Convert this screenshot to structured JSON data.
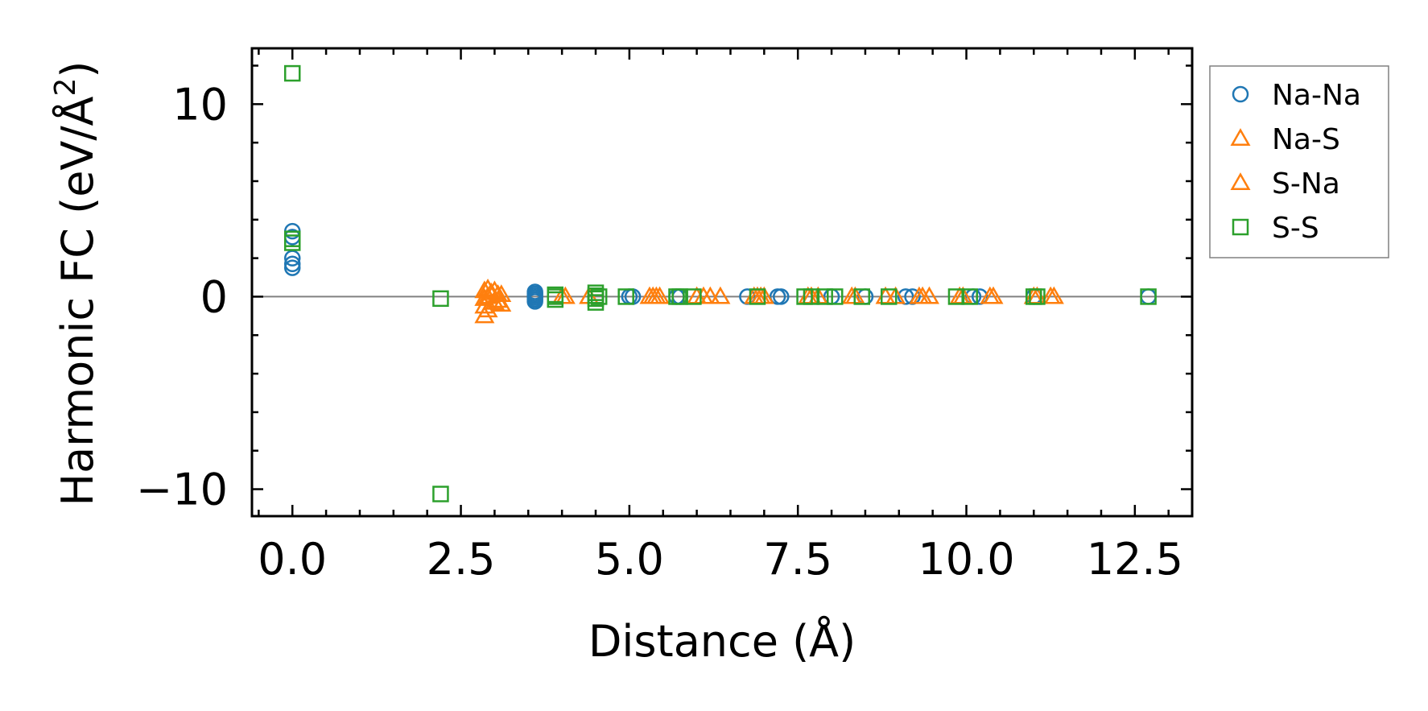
{
  "chart_data": {
    "type": "scatter",
    "title": "",
    "xlabel": "Distance (Å)",
    "ylabel_main": "Harmonic FC (eV/Å",
    "ylabel_sup": "2",
    "ylabel_close": ")",
    "xlim": [
      -0.6,
      13.35
    ],
    "ylim": [
      -11.4,
      12.9
    ],
    "xticks": [
      0.0,
      2.5,
      5.0,
      7.5,
      10.0,
      12.5
    ],
    "xtick_labels": [
      "0.0",
      "2.5",
      "5.0",
      "7.5",
      "10.0",
      "12.5"
    ],
    "yticks": [
      -10,
      0,
      10
    ],
    "ytick_labels": [
      "−10",
      "0",
      "10"
    ],
    "reference_line_y": 0,
    "legend_position": "outside right, top",
    "series": [
      {
        "name": "Na-Na",
        "marker": "circle",
        "color": "#1f77b4",
        "points": [
          [
            0,
            3.4
          ],
          [
            0,
            3.1
          ],
          [
            0,
            2.0
          ],
          [
            0,
            1.7
          ],
          [
            0,
            1.5
          ],
          [
            3.6,
            0.25
          ],
          [
            3.6,
            0.15
          ],
          [
            3.6,
            0.05
          ],
          [
            3.6,
            -0.05
          ],
          [
            3.6,
            -0.15
          ],
          [
            3.6,
            -0.25
          ],
          [
            5.0,
            0
          ],
          [
            5.05,
            0
          ],
          [
            5.7,
            0
          ],
          [
            5.75,
            0
          ],
          [
            6.75,
            0
          ],
          [
            7.2,
            0
          ],
          [
            7.25,
            0
          ],
          [
            8.0,
            0
          ],
          [
            8.5,
            0
          ],
          [
            9.1,
            0
          ],
          [
            9.2,
            0
          ],
          [
            10.1,
            0
          ],
          [
            10.2,
            0
          ],
          [
            11.0,
            0
          ],
          [
            12.7,
            0
          ]
        ]
      },
      {
        "name": "Na-S",
        "marker": "triangle",
        "color": "#ff7f0e",
        "points": [
          [
            2.85,
            0.3
          ],
          [
            2.85,
            -0.1
          ],
          [
            2.85,
            -0.5
          ],
          [
            2.85,
            -1.0
          ],
          [
            2.95,
            0.2
          ],
          [
            3.0,
            -0.3
          ],
          [
            3.05,
            0.1
          ],
          [
            3.1,
            -0.4
          ],
          [
            4.0,
            0
          ],
          [
            4.05,
            0
          ],
          [
            4.4,
            0
          ],
          [
            5.3,
            0
          ],
          [
            5.4,
            0
          ],
          [
            6.0,
            0
          ],
          [
            6.2,
            0
          ],
          [
            6.35,
            0
          ],
          [
            6.9,
            0
          ],
          [
            6.95,
            0
          ],
          [
            7.7,
            0
          ],
          [
            7.8,
            0
          ],
          [
            8.3,
            0
          ],
          [
            8.8,
            0
          ],
          [
            9.3,
            0
          ],
          [
            9.45,
            0
          ],
          [
            9.9,
            0
          ],
          [
            10.4,
            0
          ],
          [
            11.0,
            0
          ],
          [
            11.3,
            0
          ]
        ]
      },
      {
        "name": "S-Na",
        "marker": "triangle",
        "color": "#ff7f0e",
        "points": [
          [
            2.9,
            0.4
          ],
          [
            2.9,
            0.0
          ],
          [
            2.9,
            -0.7
          ],
          [
            3.0,
            0.3
          ],
          [
            3.05,
            -0.2
          ],
          [
            3.1,
            0.1
          ],
          [
            5.35,
            0
          ],
          [
            5.45,
            0
          ],
          [
            6.1,
            0
          ],
          [
            6.85,
            0
          ],
          [
            7.0,
            0
          ],
          [
            7.65,
            0
          ],
          [
            8.35,
            0
          ],
          [
            8.95,
            0
          ],
          [
            9.35,
            0
          ],
          [
            9.95,
            0
          ],
          [
            10.35,
            0
          ],
          [
            11.05,
            0
          ],
          [
            11.25,
            0
          ]
        ]
      },
      {
        "name": "S-S",
        "marker": "square",
        "color": "#2ca02c",
        "points": [
          [
            0,
            11.6
          ],
          [
            0,
            3.0
          ],
          [
            0,
            2.8
          ],
          [
            2.2,
            -0.1
          ],
          [
            2.2,
            -10.25
          ],
          [
            3.9,
            0.1
          ],
          [
            3.9,
            0
          ],
          [
            3.9,
            -0.15
          ],
          [
            4.5,
            0.2
          ],
          [
            4.5,
            0.05
          ],
          [
            4.5,
            -0.1
          ],
          [
            4.5,
            -0.3
          ],
          [
            4.55,
            0
          ],
          [
            4.95,
            0
          ],
          [
            5.7,
            0
          ],
          [
            5.75,
            0
          ],
          [
            5.95,
            0
          ],
          [
            6.9,
            0
          ],
          [
            7.6,
            0
          ],
          [
            7.7,
            0
          ],
          [
            7.9,
            0
          ],
          [
            8.05,
            0
          ],
          [
            8.45,
            0
          ],
          [
            8.85,
            0
          ],
          [
            9.85,
            0
          ],
          [
            10.05,
            0
          ],
          [
            11.0,
            0
          ],
          [
            11.05,
            0
          ],
          [
            12.7,
            0
          ]
        ]
      }
    ]
  }
}
